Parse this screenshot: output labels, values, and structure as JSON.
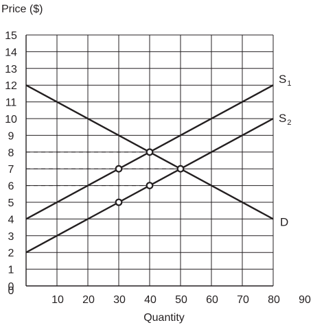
{
  "chart_data": {
    "type": "line",
    "ylabel": "Price ($)",
    "xlabel": "Quantity",
    "xlim": [
      0,
      90
    ],
    "ylim": [
      0,
      15
    ],
    "x_ticks": [
      "0",
      "10",
      "20",
      "30",
      "40",
      "50",
      "60",
      "70",
      "80",
      "90"
    ],
    "y_ticks": [
      "0",
      "1",
      "2",
      "3",
      "4",
      "5",
      "6",
      "7",
      "8",
      "9",
      "10",
      "11",
      "12",
      "13",
      "14",
      "15"
    ],
    "grid": true,
    "series": [
      {
        "name": "S",
        "subscript": "1",
        "x": [
          0,
          80
        ],
        "y": [
          4,
          12
        ]
      },
      {
        "name": "S",
        "subscript": "2",
        "x": [
          0,
          80
        ],
        "y": [
          2,
          10
        ]
      },
      {
        "name": "D",
        "subscript": "",
        "x": [
          0,
          80
        ],
        "y": [
          12,
          4
        ]
      }
    ],
    "points": [
      {
        "x": 30,
        "y": 7
      },
      {
        "x": 40,
        "y": 8
      },
      {
        "x": 50,
        "y": 7
      },
      {
        "x": 30,
        "y": 5
      },
      {
        "x": 40,
        "y": 6
      }
    ],
    "guides": [
      {
        "x": 40,
        "y": 8
      },
      {
        "x": 50,
        "y": 7
      },
      {
        "x": 40,
        "y": 6
      },
      {
        "x": 30,
        "y": 5
      }
    ]
  },
  "colors": {
    "ink": "#231f20",
    "background": "#ffffff"
  }
}
